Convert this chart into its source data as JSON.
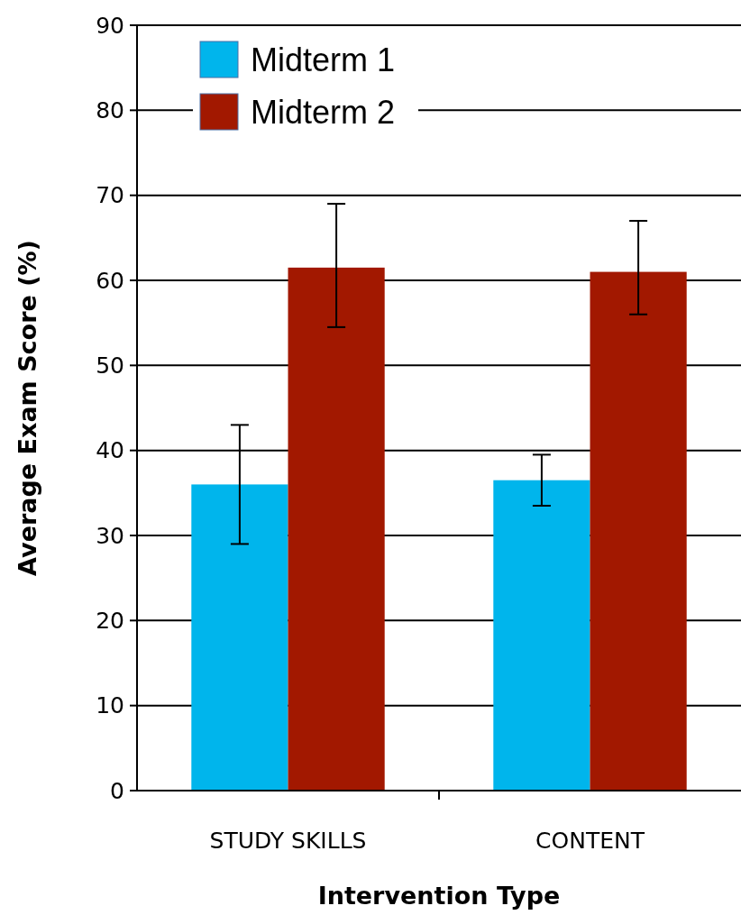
{
  "chart_data": {
    "type": "bar",
    "xlabel": "Intervention Type",
    "ylabel": "Average Exam Score (%)",
    "categories": [
      "STUDY SKILLS",
      "CONTENT"
    ],
    "series": [
      {
        "name": "Midterm 1",
        "color": "#00b5ec",
        "values": [
          36,
          36.5
        ],
        "errors": [
          [
            29,
            43
          ],
          [
            33.5,
            39.5
          ]
        ]
      },
      {
        "name": "Midterm 2",
        "color": "#a21800",
        "values": [
          61.5,
          61
        ],
        "errors": [
          [
            54.5,
            69
          ],
          [
            56,
            67
          ]
        ]
      }
    ],
    "ylim": [
      0,
      90
    ],
    "yticks": [
      0,
      10,
      20,
      30,
      40,
      50,
      60,
      70,
      80,
      90
    ],
    "grid": "y",
    "legend": "top left"
  }
}
